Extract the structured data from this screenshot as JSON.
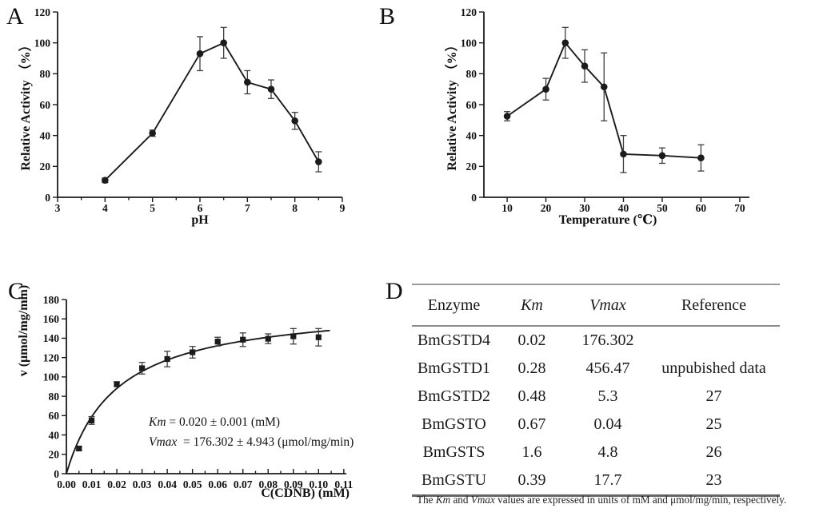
{
  "panels": {
    "a_label": "A",
    "b_label": "B",
    "c_label": "C",
    "d_label": "D"
  },
  "colors": {
    "ink": "#1b1b1b",
    "error_bar": "#3d3d3d",
    "rule_gray": "#8c8c8c",
    "background": "#ffffff"
  },
  "chart_data": [
    {
      "panel": "A",
      "type": "line",
      "xlabel": "pH",
      "ylabel": "Relative Activity （%）",
      "xlim": [
        3,
        9
      ],
      "ylim": [
        0,
        120
      ],
      "xtick_values": [
        3,
        4,
        5,
        6,
        7,
        8,
        9
      ],
      "xtick_labels": [
        "3",
        "4",
        "5",
        "6",
        "7",
        "8",
        "9"
      ],
      "ytick_values": [
        0,
        20,
        40,
        60,
        80,
        100,
        120
      ],
      "ytick_labels": [
        "0",
        "20",
        "40",
        "60",
        "80",
        "100",
        "120"
      ],
      "x_minor_step": 0.5,
      "tick_dir": "out",
      "grid": false,
      "marker": "circle",
      "connect": true,
      "x": [
        4,
        5,
        6,
        6.5,
        7,
        7.5,
        8,
        8.5
      ],
      "y": [
        11,
        41.5,
        93,
        100,
        74.5,
        70,
        49.5,
        23
      ],
      "yerr": [
        1.5,
        2,
        11,
        10,
        7.5,
        6,
        5.5,
        6.5
      ]
    },
    {
      "panel": "B",
      "type": "line",
      "xlabel": "Temperature (℃)",
      "ylabel": "Relative Activity （%）",
      "xlim": [
        4,
        72.5
      ],
      "ylim": [
        0,
        120
      ],
      "xtick_values": [
        10,
        20,
        30,
        40,
        50,
        60,
        70
      ],
      "xtick_labels": [
        "10",
        "20",
        "30",
        "40",
        "50",
        "60",
        "70"
      ],
      "ytick_values": [
        0,
        20,
        40,
        60,
        80,
        100,
        120
      ],
      "ytick_labels": [
        "0",
        "20",
        "40",
        "60",
        "80",
        "100",
        "120"
      ],
      "x_minor_step": null,
      "tick_dir": "out",
      "grid": false,
      "marker": "circle",
      "connect": true,
      "x": [
        10,
        20,
        25,
        30,
        35,
        40,
        50,
        60
      ],
      "y": [
        52.5,
        70,
        100,
        85,
        71.5,
        28,
        27,
        25.5
      ],
      "yerr": [
        3,
        7,
        10,
        10.5,
        22,
        12,
        5,
        8.5
      ]
    },
    {
      "panel": "C",
      "type": "scatter",
      "xlabel": "C(CDNB) (mM)",
      "ylabel": "v (μmol/mg/min)",
      "xlim": [
        0,
        0.111
      ],
      "ylim": [
        0,
        180
      ],
      "xtick_values": [
        0,
        0.01,
        0.02,
        0.03,
        0.04,
        0.05,
        0.06,
        0.07,
        0.08,
        0.09,
        0.1,
        0.11
      ],
      "xtick_labels": [
        "0.00",
        "0.01",
        "0.02",
        "0.03",
        "0.04",
        "0.05",
        "0.06",
        "0.07",
        "0.08",
        "0.09",
        "0.10",
        "0.11"
      ],
      "ytick_values": [
        0,
        20,
        40,
        60,
        80,
        100,
        120,
        140,
        160,
        180
      ],
      "ytick_labels": [
        "0",
        "20",
        "40",
        "60",
        "80",
        "100",
        "120",
        "140",
        "160",
        "180"
      ],
      "x_minor_step": 0.005,
      "tick_dir": "in",
      "grid": false,
      "marker": "square",
      "connect": false,
      "x": [
        0.005,
        0.01,
        0.02,
        0.03,
        0.04,
        0.05,
        0.06,
        0.07,
        0.08,
        0.09,
        0.1
      ],
      "y": [
        26,
        55,
        92.5,
        109,
        118.5,
        125.5,
        136.5,
        138.5,
        139.5,
        142,
        141
      ],
      "yerr": [
        2,
        4,
        2.5,
        6,
        8,
        6,
        4.5,
        7,
        5,
        8,
        9
      ],
      "fit": {
        "type": "michaelis_menten",
        "Km": 0.02,
        "Vmax": 176.302,
        "xmax": 0.1045
      },
      "annotation": {
        "km_label": "Km",
        "km_rest": " = 0.020 ± 0.001 (mM)",
        "vmax_label": "Vmax",
        "vmax_rest": "  = 176.302 ± 4.943 (μmol/mg/min)"
      }
    }
  ],
  "table": {
    "headers": [
      "Enzyme",
      "Km",
      "Vmax",
      "Reference"
    ],
    "rows": [
      [
        "BmGSTD4",
        "0.02",
        "176.302",
        ""
      ],
      [
        "BmGSTD1",
        "0.28",
        "456.47",
        "unpubished data"
      ],
      [
        "BmGSTD2",
        "0.48",
        "5.3",
        "27"
      ],
      [
        "BmGSTO",
        "0.67",
        "0.04",
        "25"
      ],
      [
        "BmGSTS",
        "1.6",
        "4.8",
        "26"
      ],
      [
        "BmGSTU",
        "0.39",
        "17.7",
        "23"
      ]
    ],
    "footnote": {
      "p1": "The ",
      "km": "Km",
      "p2": " and ",
      "vmax": "Vmax",
      "p3": " values are expressed in units of mM and μmol/mg/min, respectively."
    }
  }
}
